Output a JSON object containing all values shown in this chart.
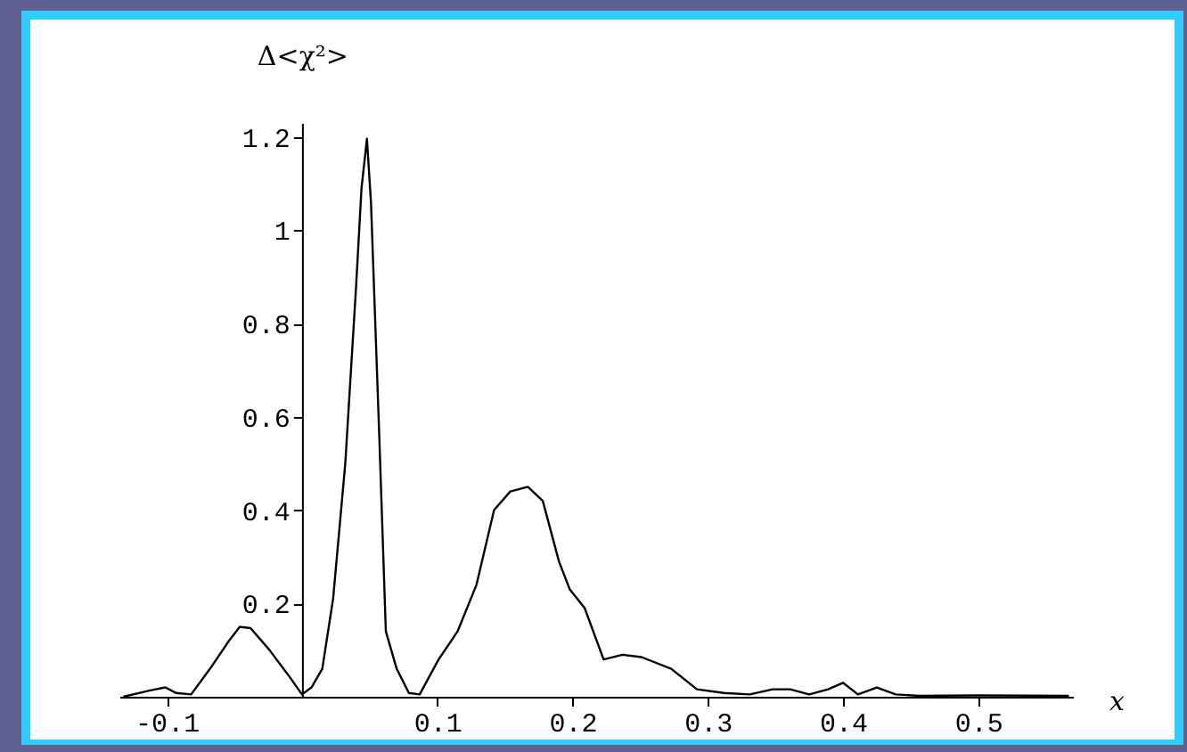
{
  "chart_data": {
    "type": "line",
    "xlabel": "x",
    "ylabel": "Δ<χ²>",
    "x": [
      -0.132,
      -0.113,
      -0.101,
      -0.093,
      -0.082,
      -0.068,
      -0.054,
      -0.046,
      -0.038,
      -0.024,
      -0.01,
      0,
      0.007,
      0.015,
      0.023,
      0.032,
      0.04,
      0.044,
      0.048,
      0.051,
      0.057,
      0.062,
      0.07,
      0.079,
      0.087,
      0.101,
      0.115,
      0.129,
      0.142,
      0.154,
      0.167,
      0.178,
      0.19,
      0.198,
      0.209,
      0.223,
      0.237,
      0.251,
      0.273,
      0.292,
      0.312,
      0.331,
      0.348,
      0.361,
      0.375,
      0.389,
      0.4,
      0.411,
      0.425,
      0.439,
      0.456,
      0.5,
      0.567
    ],
    "series": [
      {
        "color": "#000000",
        "values": [
          0,
          0.013,
          0.02,
          0.008,
          0.005,
          0.06,
          0.12,
          0.15,
          0.147,
          0.1,
          0.046,
          0.005,
          0.02,
          0.06,
          0.21,
          0.5,
          0.88,
          1.09,
          1.196,
          1.06,
          0.57,
          0.14,
          0.06,
          0.008,
          0.005,
          0.08,
          0.14,
          0.24,
          0.4,
          0.44,
          0.45,
          0.42,
          0.29,
          0.23,
          0.19,
          0.08,
          0.09,
          0.085,
          0.06,
          0.016,
          0.008,
          0.005,
          0.016,
          0.016,
          0.005,
          0.016,
          0.03,
          0.005,
          0.02,
          0.005,
          0.002,
          0.003,
          0.002
        ]
      }
    ],
    "xlim": [
      -0.135,
      0.57
    ],
    "ylim": [
      0,
      1.23
    ],
    "xticks": [
      -0.1,
      0.1,
      0.2,
      0.3,
      0.4,
      0.5
    ],
    "yticks": [
      0.2,
      0.4,
      0.6,
      0.8,
      1,
      1.2
    ],
    "grid": false,
    "legend": false,
    "marker": "none",
    "line_style": "solid"
  }
}
